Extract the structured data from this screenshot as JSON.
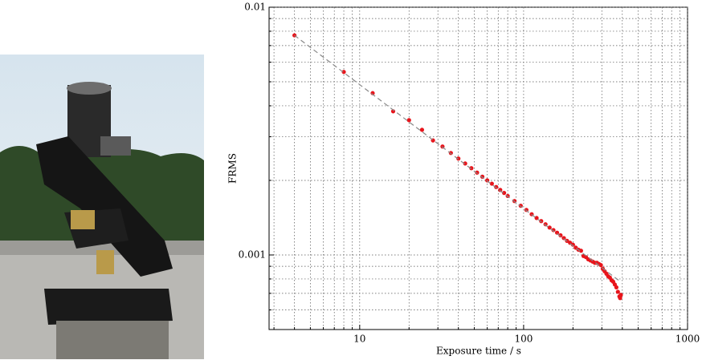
{
  "chart_data": {
    "type": "scatter",
    "xlabel": "Exposure time / s",
    "ylabel": "FRMS",
    "xscale": "log",
    "yscale": "log",
    "grid": true,
    "xlim": [
      2.8,
      1000
    ],
    "ylim": [
      0.0005,
      0.01
    ],
    "xticks": [
      10,
      100,
      1000
    ],
    "yticks": [
      0.001,
      0.01
    ],
    "xminorticks": [
      3,
      4,
      5,
      6,
      7,
      8,
      9,
      20,
      30,
      40,
      50,
      60,
      70,
      80,
      90,
      200,
      300,
      400,
      500,
      600,
      700,
      800,
      900
    ],
    "yminorticks": [
      0.0006,
      0.0007,
      0.0008,
      0.0009,
      0.002,
      0.003,
      0.004,
      0.005,
      0.006,
      0.007,
      0.008,
      0.009
    ],
    "series": [
      {
        "color": "#e8141b",
        "x": [
          4,
          8,
          12,
          16,
          20,
          24,
          28,
          32,
          36,
          40,
          44,
          48,
          52,
          56,
          60,
          64,
          68,
          72,
          76,
          80,
          88,
          96,
          104,
          112,
          120,
          128,
          136,
          144,
          152,
          160,
          168,
          176,
          184,
          192,
          200,
          208,
          216,
          224,
          232,
          240,
          248,
          256,
          264,
          272,
          280,
          288,
          296,
          304,
          312,
          320,
          328,
          336,
          344,
          352,
          360,
          368,
          376,
          384,
          388,
          392
        ],
        "values": [
          0.0077,
          0.00548,
          0.0045,
          0.0038,
          0.0035,
          0.0032,
          0.0029,
          0.00274,
          0.00258,
          0.00245,
          0.00234,
          0.00224,
          0.00215,
          0.00207,
          0.002,
          0.00194,
          0.00188,
          0.00183,
          0.00178,
          0.00173,
          0.00165,
          0.00158,
          0.00152,
          0.00146,
          0.00141,
          0.00137,
          0.00133,
          0.00129,
          0.00126,
          0.00123,
          0.0012,
          0.00117,
          0.00114,
          0.00112,
          0.0011,
          0.00107,
          0.00105,
          0.00104,
          0.00099,
          0.00098,
          0.00096,
          0.00095,
          0.00094,
          0.00093,
          0.00093,
          0.00092,
          0.00091,
          0.00088,
          0.00086,
          0.00084,
          0.00082,
          0.00081,
          0.00079,
          0.00078,
          0.00076,
          0.00074,
          0.00071,
          0.00068,
          0.00067,
          0.00069
        ]
      },
      {
        "color": "#888888",
        "style": "dashed",
        "x": [
          4,
          380
        ],
        "values": [
          0.0077,
          0.00079
        ]
      }
    ]
  }
}
